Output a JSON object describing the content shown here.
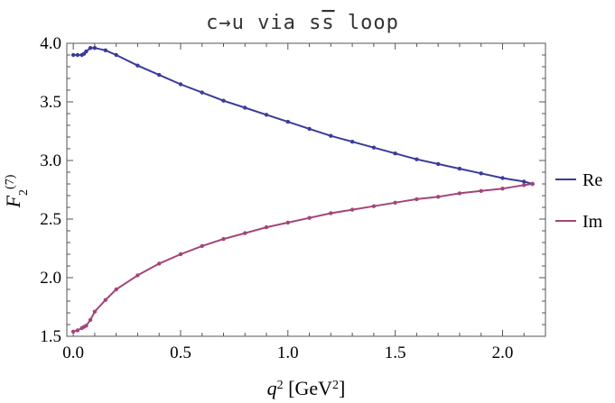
{
  "chart_data": {
    "type": "line",
    "title": "c→u via s",
    "title_overbar": "s",
    "title_suffix": " loop",
    "xlabel": {
      "var": "q",
      "sup": "2",
      "unit_open": " [GeV",
      "unit_sup": "2",
      "unit_close": "]"
    },
    "ylabel": {
      "var": "F",
      "sub": "2",
      "sup": "(7)"
    },
    "xlim": [
      -0.03,
      2.2
    ],
    "ylim": [
      1.5,
      4.0
    ],
    "xticks": [
      {
        "v": 0.0,
        "label": "0.0"
      },
      {
        "v": 0.5,
        "label": "0.5"
      },
      {
        "v": 1.0,
        "label": "1.0"
      },
      {
        "v": 1.5,
        "label": "1.5"
      },
      {
        "v": 2.0,
        "label": "2.0"
      }
    ],
    "yticks": [
      {
        "v": 1.5,
        "label": "1.5"
      },
      {
        "v": 2.0,
        "label": "2.0"
      },
      {
        "v": 2.5,
        "label": "2.5"
      },
      {
        "v": 3.0,
        "label": "3.0"
      },
      {
        "v": 3.5,
        "label": "3.5"
      },
      {
        "v": 4.0,
        "label": "4.0"
      }
    ],
    "series": [
      {
        "name": "Re",
        "color": "#3a3c9a",
        "x": [
          0.0,
          0.02,
          0.04,
          0.05,
          0.06,
          0.08,
          0.1,
          0.15,
          0.2,
          0.3,
          0.4,
          0.5,
          0.6,
          0.7,
          0.8,
          0.9,
          1.0,
          1.1,
          1.2,
          1.3,
          1.4,
          1.5,
          1.6,
          1.7,
          1.8,
          1.9,
          2.0,
          2.1,
          2.14
        ],
        "y": [
          3.9,
          3.9,
          3.9,
          3.91,
          3.93,
          3.96,
          3.96,
          3.94,
          3.9,
          3.81,
          3.73,
          3.65,
          3.58,
          3.51,
          3.45,
          3.39,
          3.33,
          3.27,
          3.21,
          3.16,
          3.11,
          3.06,
          3.01,
          2.97,
          2.93,
          2.89,
          2.85,
          2.82,
          2.8
        ]
      },
      {
        "name": "Im",
        "color": "#a3457a",
        "x": [
          0.0,
          0.02,
          0.04,
          0.05,
          0.06,
          0.08,
          0.1,
          0.15,
          0.2,
          0.3,
          0.4,
          0.5,
          0.6,
          0.7,
          0.8,
          0.9,
          1.0,
          1.1,
          1.2,
          1.3,
          1.4,
          1.5,
          1.6,
          1.7,
          1.8,
          1.9,
          2.0,
          2.1,
          2.14
        ],
        "y": [
          1.54,
          1.55,
          1.57,
          1.58,
          1.59,
          1.64,
          1.71,
          1.81,
          1.9,
          2.02,
          2.12,
          2.2,
          2.27,
          2.33,
          2.38,
          2.43,
          2.47,
          2.51,
          2.55,
          2.58,
          2.61,
          2.64,
          2.67,
          2.69,
          2.72,
          2.74,
          2.76,
          2.79,
          2.8
        ]
      }
    ],
    "legend": {
      "position": "right",
      "entries": [
        "Re",
        "Im"
      ]
    },
    "grid": false
  }
}
